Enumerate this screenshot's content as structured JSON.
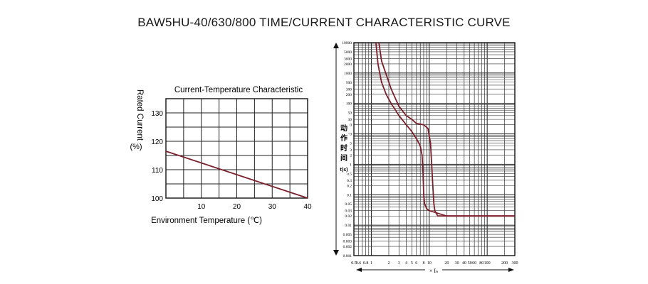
{
  "title": "BAW5HU-40/630/800 TIME/CURRENT CHARACTERISTIC CURVE",
  "chart_data": [
    {
      "type": "line",
      "title": "Current-Temperature Characteristic",
      "xlabel": "Environment Temperature (℃)",
      "ylabel": "Rated Current",
      "ylabel_unit": "(%)",
      "xlim": [
        0,
        40
      ],
      "ylim": [
        100,
        135
      ],
      "x_ticks": [
        10,
        20,
        30,
        40
      ],
      "y_ticks": [
        100,
        110,
        120,
        130
      ],
      "grid": true,
      "line_color": "#7a1f2b",
      "series": [
        {
          "x": [
            0,
            40
          ],
          "y": [
            116.5,
            100
          ]
        }
      ]
    },
    {
      "type": "line",
      "xlabel": "× Iₙ",
      "ylabel": "动作时间 t(s)",
      "ylabel_chars": [
        "动",
        "作",
        "时",
        "间",
        "t(s)"
      ],
      "xscale": "log",
      "yscale": "log",
      "xlim": [
        0.5,
        300
      ],
      "ylim": [
        0.001,
        10000
      ],
      "x_tick_labels": [
        "0.5",
        "0.6",
        "0.8",
        "1",
        "2",
        "3",
        "4",
        "5",
        "6",
        "8",
        "10",
        "20",
        "30",
        "40",
        "50",
        "60",
        "80",
        "100",
        "200",
        "300"
      ],
      "y_tick_labels": [
        "10000",
        "5000",
        "3000",
        "2000",
        "1000",
        "500",
        "300",
        "200",
        "100",
        "50",
        "30",
        "20",
        "10",
        "5",
        "3",
        "2",
        "1",
        "0.5",
        "0.3",
        "0.2",
        "0.1",
        "0.05",
        "0.03",
        "0.02",
        "0.01",
        "0.005",
        "0.003",
        "0.002",
        "0.001"
      ],
      "grid": true,
      "line_color": "#7a1f2b",
      "series": [
        {
          "x": [
            1.2,
            1.3,
            1.5,
            1.8,
            2.2,
            3,
            4,
            5,
            6,
            7,
            7.5,
            7.8,
            8,
            8.3,
            9,
            10,
            20,
            50,
            100,
            300
          ],
          "y": [
            10000,
            2000,
            500,
            200,
            100,
            40,
            20,
            12,
            7,
            4,
            2,
            0.5,
            0.1,
            0.05,
            0.035,
            0.03,
            0.02,
            0.02,
            0.02,
            0.02
          ]
        },
        {
          "x": [
            1.35,
            1.5,
            1.8,
            2.2,
            3,
            4,
            5,
            6,
            8,
            9.5,
            10.5,
            11,
            11.5,
            12,
            12.5,
            14,
            20,
            50,
            100,
            300
          ],
          "y": [
            10000,
            2500,
            900,
            300,
            80,
            40,
            30,
            22,
            20,
            15,
            5,
            1,
            0.2,
            0.05,
            0.03,
            0.02,
            0.02,
            0.02,
            0.02,
            0.02
          ]
        }
      ]
    }
  ]
}
